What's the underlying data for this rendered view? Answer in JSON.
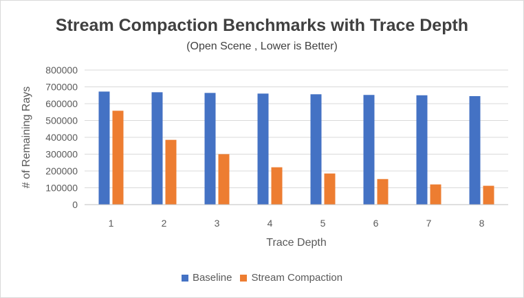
{
  "chart_data": {
    "type": "bar",
    "title": "Stream Compaction Benchmarks with Trace Depth",
    "subtitle": "(Open Scene , Lower is Better)",
    "xlabel": "Trace Depth",
    "ylabel": "# of Remaining Rays",
    "categories": [
      "1",
      "2",
      "3",
      "4",
      "5",
      "6",
      "7",
      "8"
    ],
    "ylim": [
      0,
      800000
    ],
    "yticks": [
      0,
      100000,
      200000,
      300000,
      400000,
      500000,
      600000,
      700000,
      800000
    ],
    "grid": true,
    "legend_position": "bottom",
    "series": [
      {
        "name": "Baseline",
        "color": "#4472c4",
        "values": [
          672000,
          668000,
          664000,
          660000,
          656000,
          652000,
          650000,
          645000
        ]
      },
      {
        "name": "Stream Compaction",
        "color": "#ed7d31",
        "values": [
          558000,
          385000,
          300000,
          222000,
          185000,
          152000,
          120000,
          112000
        ]
      }
    ]
  }
}
